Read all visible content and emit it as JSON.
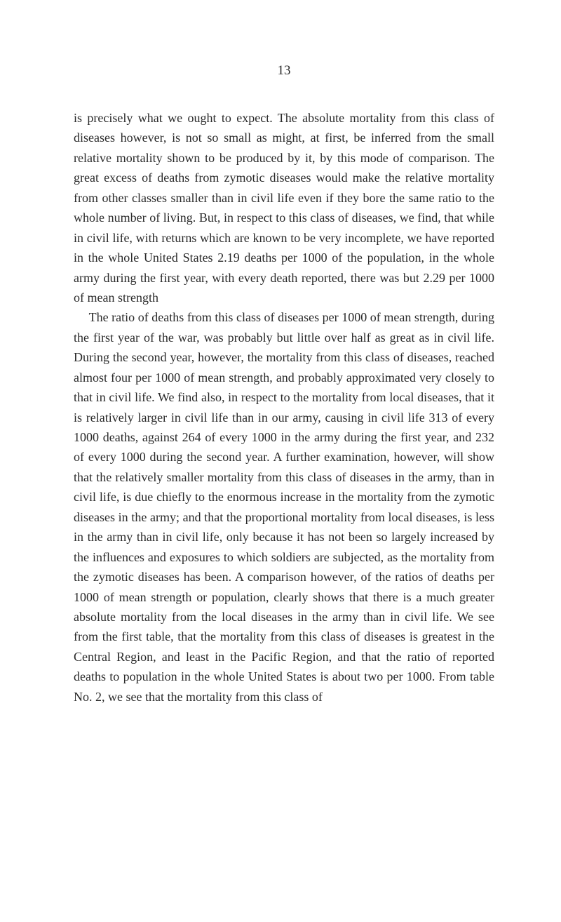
{
  "page_number": "13",
  "paragraphs": [
    "is precisely what we ought to expect. The absolute mortality from this class of diseases however, is not so small as might, at first, be inferred from the small relative mortality shown to be produced by it, by this mode of comparison. The great excess of deaths from zymotic diseases would make the relative mortality from other classes smaller than in civil life even if they bore the same ratio to the whole number of living. But, in respect to this class of diseases, we find, that while in civil life, with returns which are known to be very incomplete, we have reported in the whole United States 2.19 deaths per 1000 of the population, in the whole army during the first year, with every death reported, there was but 2.29 per 1000 of mean strength",
    "The ratio of deaths from this class of diseases per 1000 of mean strength, during the first year of the war, was probably but little over half as great as in civil life. During the second year, however, the mortality from this class of diseases, reached almost four per 1000 of mean strength, and probably approximated very closely to that in civil life. We find also, in respect to the mortality from local diseases, that it is relatively larger in civil life than in our army, causing in civil life 313 of every 1000 deaths, against 264 of every 1000 in the army during the first year, and 232 of every 1000 during the second year. A further examination, however, will show that the relatively smaller mortality from this class of diseases in the army, than in civil life, is due chiefly to the enormous increase in the mortality from the zymotic diseases in the army; and that the proportional mortality from local diseases, is less in the army than in civil life, only because it has not been so largely increased by the influences and exposures to which soldiers are subjected, as the mortality from the zymotic diseases has been. A comparison however, of the ratios of deaths per 1000 of mean strength or population, clearly shows that there is a much greater absolute mortality from the local diseases in the army than in civil life. We see from the first table, that the mortality from this class of diseases is greatest in the Central Region, and least in the Pacific Region, and that the ratio of reported deaths to population in the whole United States is about two per 1000. From table No. 2, we see that the mortality from this class of"
  ],
  "style": {
    "background_color": "#ffffff",
    "text_color": "#2a2a2a",
    "font_size": 18,
    "line_height": 1.58,
    "page_number_font_size": 19
  }
}
